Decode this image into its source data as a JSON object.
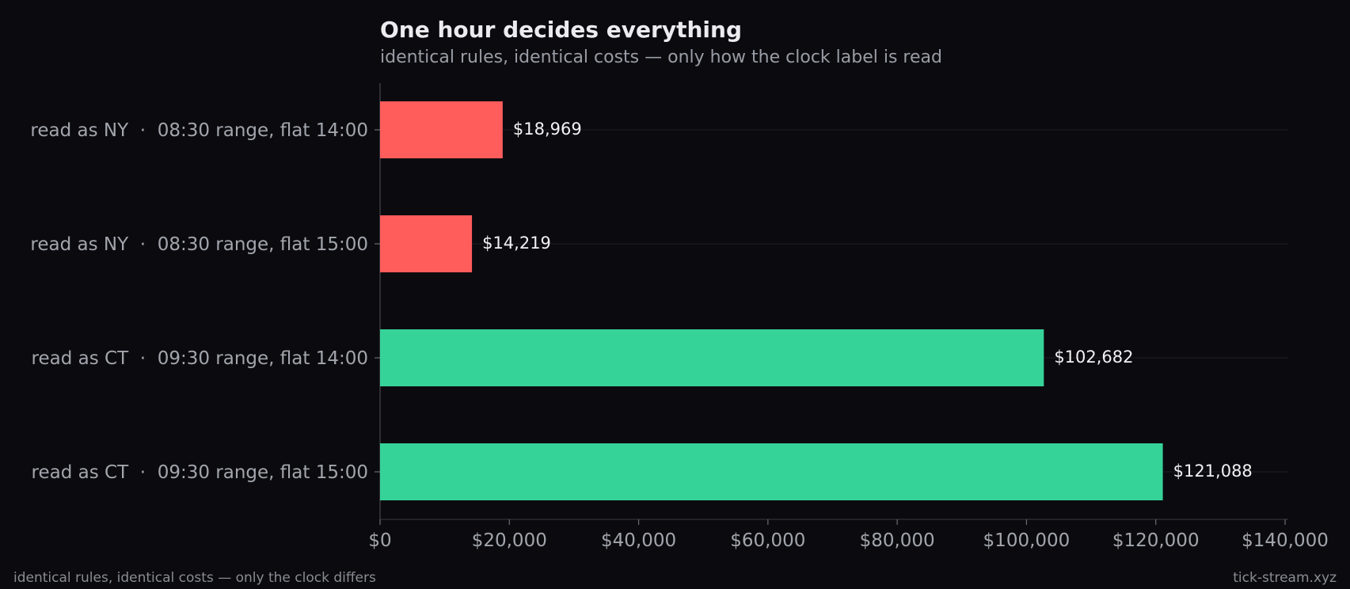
{
  "chart_data": {
    "type": "bar",
    "orientation": "horizontal",
    "title": "One hour decides everything",
    "subtitle": "identical rules, identical costs — only how the clock label is read",
    "categories": [
      "read as NY  ·  08:30 range, flat 14:00",
      "read as NY  ·  08:30 range, flat 15:00",
      "read as CT  ·  09:30 range, flat 14:00",
      "read as CT  ·  09:30 range, flat 15:00"
    ],
    "values": [
      18969,
      14219,
      102682,
      121088
    ],
    "value_labels": [
      "$18,969",
      "$14,219",
      "$102,682",
      "$121,088"
    ],
    "bar_colors": [
      "#ff5c5c",
      "#ff5c5c",
      "#36d399",
      "#36d399"
    ],
    "xlim": [
      0,
      140000
    ],
    "xticks": [
      0,
      20000,
      40000,
      60000,
      80000,
      100000,
      120000,
      140000
    ],
    "xtick_labels": [
      "$0",
      "$20,000",
      "$40,000",
      "$60,000",
      "$80,000",
      "$100,000",
      "$120,000",
      "$140,000"
    ],
    "grid": "horizontal lines at bar centers",
    "legend": "none"
  },
  "footer": {
    "left": "identical rules, identical costs — only the clock differs",
    "right": "tick-stream.xyz"
  },
  "colors": {
    "background": "#0b0b0f",
    "negative": "#ff5c5c",
    "positive": "#36d399"
  }
}
